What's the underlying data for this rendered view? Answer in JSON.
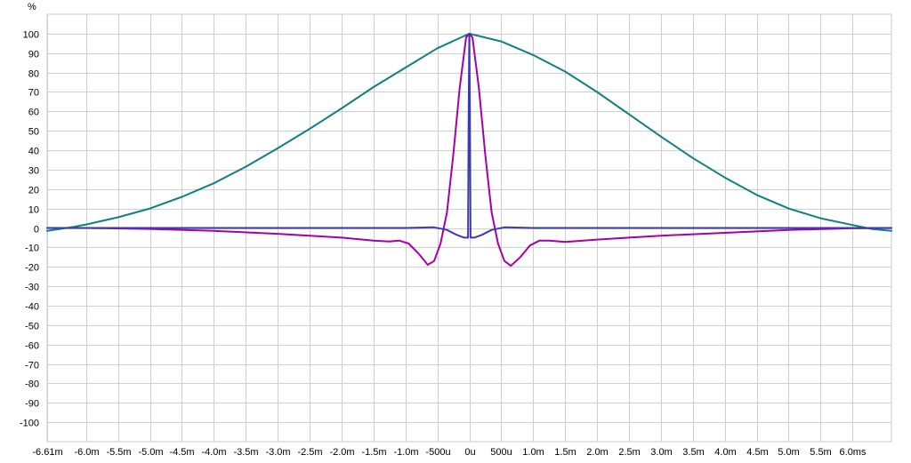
{
  "chart_data": {
    "type": "line",
    "ylabel": "%",
    "ylim": [
      -110,
      110
    ],
    "xlim": [
      -6.61,
      6.61
    ],
    "x_unit": "ms",
    "grid": true,
    "legend": "none",
    "y_ticks": [
      100,
      90,
      80,
      70,
      60,
      50,
      40,
      30,
      20,
      10,
      0,
      -10,
      -20,
      -30,
      -40,
      -50,
      -60,
      -70,
      -80,
      -90,
      -100
    ],
    "x_ticks": [
      {
        "v": -6.61,
        "label": "-6.61m"
      },
      {
        "v": -6.0,
        "label": "-6.0m"
      },
      {
        "v": -5.5,
        "label": "-5.5m"
      },
      {
        "v": -5.0,
        "label": "-5.0m"
      },
      {
        "v": -4.5,
        "label": "-4.5m"
      },
      {
        "v": -4.0,
        "label": "-4.0m"
      },
      {
        "v": -3.5,
        "label": "-3.5m"
      },
      {
        "v": -3.0,
        "label": "-3.0m"
      },
      {
        "v": -2.5,
        "label": "-2.5m"
      },
      {
        "v": -2.0,
        "label": "-2.0m"
      },
      {
        "v": -1.5,
        "label": "-1.5m"
      },
      {
        "v": -1.0,
        "label": "-1.0m"
      },
      {
        "v": -0.5,
        "label": "-500u"
      },
      {
        "v": 0,
        "label": "0u"
      },
      {
        "v": 0.5,
        "label": "500u"
      },
      {
        "v": 1.0,
        "label": "1.0m"
      },
      {
        "v": 1.5,
        "label": "1.5m"
      },
      {
        "v": 2.0,
        "label": "2.0m"
      },
      {
        "v": 2.5,
        "label": "2.5m"
      },
      {
        "v": 3.0,
        "label": "3.0m"
      },
      {
        "v": 3.5,
        "label": "3.5m"
      },
      {
        "v": 4.0,
        "label": "4.0m"
      },
      {
        "v": 4.5,
        "label": "4.5m"
      },
      {
        "v": 5.0,
        "label": "5.0m"
      },
      {
        "v": 5.5,
        "label": "5.5m"
      },
      {
        "v": 6.0,
        "label": "6.0ms"
      }
    ],
    "series": [
      {
        "color": "#0f8080",
        "points": [
          [
            -6.61,
            -1.5
          ],
          [
            -6.2,
            0.5
          ],
          [
            -6.0,
            1.8
          ],
          [
            -5.5,
            5.5
          ],
          [
            -5.0,
            10
          ],
          [
            -4.5,
            16
          ],
          [
            -4.0,
            23
          ],
          [
            -3.5,
            31.5
          ],
          [
            -3.0,
            41
          ],
          [
            -2.5,
            51
          ],
          [
            -2.0,
            61.5
          ],
          [
            -1.5,
            72.5
          ],
          [
            -1.0,
            82.5
          ],
          [
            -0.5,
            92.5
          ],
          [
            0,
            100
          ],
          [
            0.5,
            96
          ],
          [
            1.0,
            89
          ],
          [
            1.5,
            80.5
          ],
          [
            2.0,
            70
          ],
          [
            2.5,
            58.5
          ],
          [
            3.0,
            47
          ],
          [
            3.5,
            36
          ],
          [
            4.0,
            26
          ],
          [
            4.5,
            17
          ],
          [
            5.0,
            10
          ],
          [
            5.5,
            5
          ],
          [
            6.0,
            1.5
          ],
          [
            6.3,
            -0.5
          ],
          [
            6.61,
            -1.5
          ]
        ]
      },
      {
        "color": "#a600a6",
        "points": [
          [
            -6.61,
            0
          ],
          [
            -6.0,
            0
          ],
          [
            -5.0,
            -0.5
          ],
          [
            -4.0,
            -1.5
          ],
          [
            -3.0,
            -3
          ],
          [
            -2.5,
            -4
          ],
          [
            -2.0,
            -5
          ],
          [
            -1.5,
            -6.5
          ],
          [
            -1.25,
            -7
          ],
          [
            -1.1,
            -6.5
          ],
          [
            -0.95,
            -8
          ],
          [
            -0.8,
            -13
          ],
          [
            -0.65,
            -19
          ],
          [
            -0.55,
            -17
          ],
          [
            -0.45,
            -8
          ],
          [
            -0.35,
            8
          ],
          [
            -0.25,
            38
          ],
          [
            -0.15,
            72
          ],
          [
            -0.05,
            98
          ],
          [
            0,
            100
          ],
          [
            0.05,
            98
          ],
          [
            0.15,
            72
          ],
          [
            0.25,
            38
          ],
          [
            0.35,
            8
          ],
          [
            0.45,
            -8
          ],
          [
            0.55,
            -17
          ],
          [
            0.65,
            -19.5
          ],
          [
            0.8,
            -15
          ],
          [
            0.95,
            -9
          ],
          [
            1.1,
            -6.5
          ],
          [
            1.25,
            -6.5
          ],
          [
            1.5,
            -7.2
          ],
          [
            2.0,
            -6
          ],
          [
            2.5,
            -5
          ],
          [
            3.0,
            -4
          ],
          [
            4.0,
            -2.5
          ],
          [
            5.0,
            -1
          ],
          [
            6.0,
            -0.2
          ],
          [
            6.61,
            0
          ]
        ]
      },
      {
        "color": "#3a3ab8",
        "points": [
          [
            -6.61,
            0
          ],
          [
            -2.0,
            0
          ],
          [
            -1.0,
            0
          ],
          [
            -0.55,
            0.3
          ],
          [
            -0.35,
            -1
          ],
          [
            -0.2,
            -3.5
          ],
          [
            -0.08,
            -5
          ],
          [
            -0.02,
            -5
          ],
          [
            -0.01,
            60
          ],
          [
            0,
            100
          ],
          [
            0.01,
            60
          ],
          [
            0.02,
            -5
          ],
          [
            0.08,
            -5
          ],
          [
            0.2,
            -3.5
          ],
          [
            0.35,
            -1
          ],
          [
            0.55,
            0.3
          ],
          [
            1.0,
            0
          ],
          [
            2.0,
            0
          ],
          [
            6.61,
            0
          ]
        ]
      }
    ]
  }
}
